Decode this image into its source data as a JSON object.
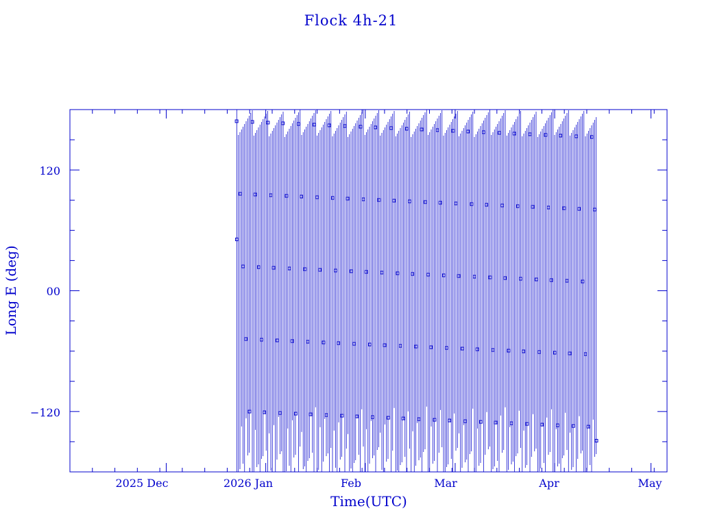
{
  "chart_data": {
    "type": "line",
    "title": "Flock 4h-21",
    "xlabel": "Time(UTC)",
    "ylabel": "Long E (deg)",
    "x_tick_labels": [
      "2025 Dec",
      "2026 Jan",
      "Feb",
      "Mar",
      "Apr",
      "May"
    ],
    "x_tick_dates": [
      "2025-12-01",
      "2026-01-01",
      "2026-02-01",
      "2026-03-01",
      "2026-04-01",
      "2026-05-01"
    ],
    "xlim": [
      "2025-11-01",
      "2026-05-06"
    ],
    "y_tick_labels": [
      "−120",
      "00",
      "120"
    ],
    "y_tick_values": [
      -120,
      0,
      120
    ],
    "ylim": [
      -180,
      180
    ],
    "grid": false,
    "legend": "none",
    "marker": "square",
    "color": "#0000cc",
    "series": [
      {
        "x": [
          "2025-12-23",
          "2026-04-14"
        ],
        "y": [
          51,
          -149
        ],
        "note_visible": "dense longitude wrap pattern from about 2025-12-23 to 2026-04-14"
      }
    ]
  }
}
